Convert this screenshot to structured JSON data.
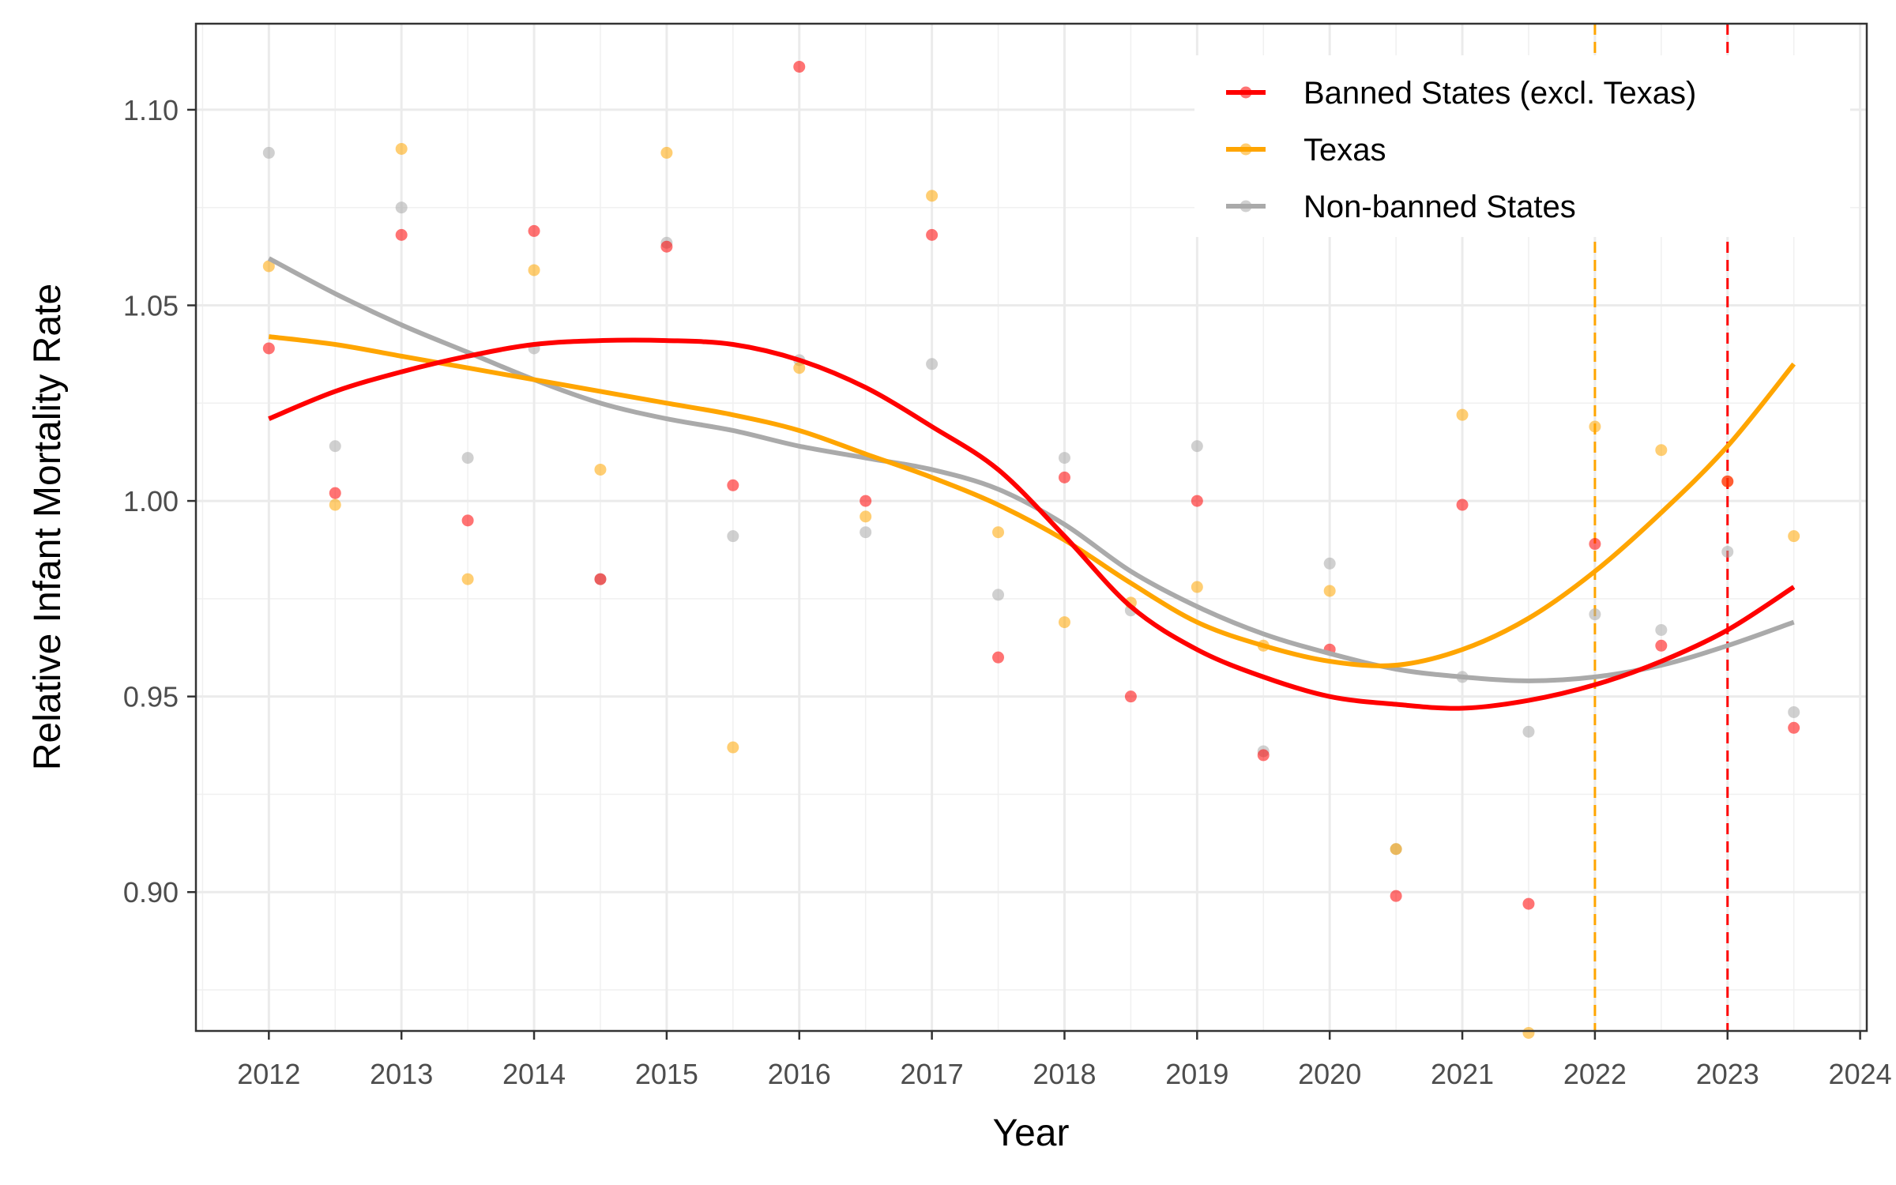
{
  "chart_data": {
    "type": "scatter",
    "xlabel": "Year",
    "ylabel": "Relative Infant Mortality Rate",
    "xlim": [
      2011.45,
      2024.05
    ],
    "ylim": [
      0.8645,
      1.122
    ],
    "x_ticks": [
      2012,
      2013,
      2014,
      2015,
      2016,
      2017,
      2018,
      2019,
      2020,
      2021,
      2022,
      2023,
      2024
    ],
    "x_tick_labels": [
      "2012",
      "2013",
      "2014",
      "2015",
      "2016",
      "2017",
      "2018",
      "2019",
      "2020",
      "2021",
      "2022",
      "2023",
      "2024"
    ],
    "y_ticks": [
      0.9,
      0.95,
      1.0,
      1.05,
      1.1
    ],
    "y_tick_labels": [
      "0.90",
      "0.95",
      "1.00",
      "1.05",
      "1.10"
    ],
    "y_minor_ticks": [
      0.875,
      0.925,
      0.975,
      1.025,
      1.075
    ],
    "grid": true,
    "legend_position": "top-right",
    "series": [
      {
        "name": "Banned States (excl. Texas)",
        "color": "#ff0000",
        "points": {
          "x": [
            2012,
            2012.5,
            2013,
            2013.5,
            2014,
            2014.5,
            2015,
            2015.5,
            2016,
            2016.5,
            2017,
            2017.5,
            2018,
            2018.5,
            2019,
            2019.5,
            2020,
            2020.5,
            2021,
            2021.5,
            2022,
            2022.5,
            2023,
            2023.5
          ],
          "y": [
            1.039,
            1.002,
            1.068,
            0.995,
            1.069,
            0.98,
            1.065,
            1.004,
            1.111,
            1.0,
            1.068,
            0.96,
            1.006,
            0.95,
            1.0,
            0.935,
            0.962,
            0.899,
            0.999,
            0.897,
            0.989,
            0.963,
            1.005,
            0.942
          ]
        },
        "trend": {
          "x": [
            2012,
            2012.5,
            2013,
            2013.5,
            2014,
            2014.5,
            2015,
            2015.5,
            2016,
            2016.5,
            2017,
            2017.5,
            2018,
            2018.5,
            2019,
            2019.5,
            2020,
            2020.5,
            2021,
            2021.5,
            2022,
            2022.5,
            2023,
            2023.5
          ],
          "y": [
            1.021,
            1.028,
            1.033,
            1.037,
            1.04,
            1.041,
            1.041,
            1.04,
            1.036,
            1.029,
            1.019,
            1.008,
            0.991,
            0.973,
            0.962,
            0.955,
            0.95,
            0.948,
            0.947,
            0.949,
            0.953,
            0.959,
            0.967,
            0.978
          ]
        }
      },
      {
        "name": "Texas",
        "color": "#ffa500",
        "points": {
          "x": [
            2012,
            2012.5,
            2013,
            2013.5,
            2014,
            2014.5,
            2015,
            2015.5,
            2016,
            2016.5,
            2017,
            2017.5,
            2018,
            2018.5,
            2019,
            2019.5,
            2020,
            2020.5,
            2021,
            2021.5,
            2022,
            2022.5,
            2023,
            2023.5
          ],
          "y": [
            1.06,
            0.999,
            1.09,
            0.98,
            1.059,
            1.008,
            1.089,
            0.937,
            1.034,
            0.996,
            1.078,
            0.992,
            0.969,
            0.974,
            0.978,
            0.963,
            0.977,
            0.911,
            1.022,
            0.864,
            1.019,
            1.013,
            1.005,
            0.991
          ]
        },
        "trend": {
          "x": [
            2012,
            2012.5,
            2013,
            2013.5,
            2014,
            2014.5,
            2015,
            2015.5,
            2016,
            2016.5,
            2017,
            2017.5,
            2018,
            2018.5,
            2019,
            2019.5,
            2020,
            2020.5,
            2021,
            2021.5,
            2022,
            2022.5,
            2023,
            2023.5
          ],
          "y": [
            1.042,
            1.04,
            1.037,
            1.034,
            1.031,
            1.028,
            1.025,
            1.022,
            1.018,
            1.012,
            1.006,
            0.999,
            0.99,
            0.979,
            0.969,
            0.963,
            0.959,
            0.958,
            0.962,
            0.97,
            0.982,
            0.997,
            1.014,
            1.035
          ]
        }
      },
      {
        "name": "Non-banned States",
        "color": "#aaaaaa",
        "points": {
          "x": [
            2012,
            2012.5,
            2013,
            2013.5,
            2014,
            2014.5,
            2015,
            2015.5,
            2016,
            2016.5,
            2017,
            2017.5,
            2018,
            2018.5,
            2019,
            2019.5,
            2020,
            2020.5,
            2021,
            2021.5,
            2022,
            2022.5,
            2023,
            2023.5
          ],
          "y": [
            1.089,
            1.014,
            1.075,
            1.011,
            1.039,
            0.98,
            1.066,
            0.991,
            1.036,
            0.992,
            1.035,
            0.976,
            1.011,
            0.972,
            1.014,
            0.936,
            0.984,
            0.911,
            0.955,
            0.941,
            0.971,
            0.967,
            0.987,
            0.946
          ]
        },
        "trend": {
          "x": [
            2012,
            2012.5,
            2013,
            2013.5,
            2014,
            2014.5,
            2015,
            2015.5,
            2016,
            2016.5,
            2017,
            2017.5,
            2018,
            2018.5,
            2019,
            2019.5,
            2020,
            2020.5,
            2021,
            2021.5,
            2022,
            2022.5,
            2023,
            2023.5
          ],
          "y": [
            1.062,
            1.053,
            1.045,
            1.038,
            1.031,
            1.025,
            1.021,
            1.018,
            1.014,
            1.011,
            1.008,
            1.003,
            0.994,
            0.982,
            0.973,
            0.966,
            0.961,
            0.957,
            0.955,
            0.954,
            0.955,
            0.958,
            0.963,
            0.969
          ]
        }
      }
    ],
    "vlines": [
      {
        "x": 2022,
        "color": "#ffa500",
        "style": "dashed"
      },
      {
        "x": 2023,
        "color": "#ff0000",
        "style": "dashed"
      }
    ]
  }
}
